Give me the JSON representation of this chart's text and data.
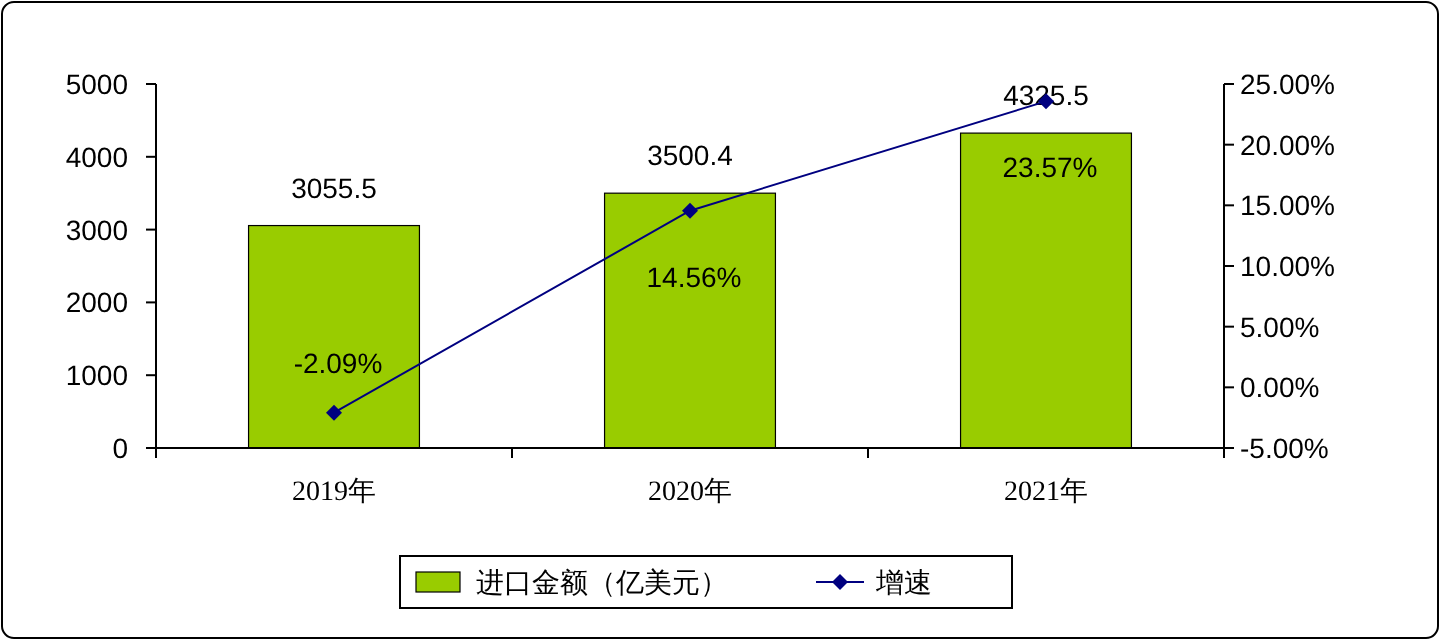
{
  "chart_data": {
    "type": "bar",
    "categories": [
      "2019年",
      "2020年",
      "2021年"
    ],
    "series": [
      {
        "name": "进口金额（亿美元）",
        "color": "#99cc00",
        "values": [
          3055.5,
          3500.4,
          4325.5
        ],
        "value_labels": [
          "3055.5",
          "3500.4",
          "4325.5"
        ]
      },
      {
        "name": "增速",
        "type": "line",
        "axis": "y2",
        "color": "#000080",
        "values": [
          -2.09,
          14.56,
          23.57
        ],
        "value_labels": [
          "-2.09%",
          "14.56%",
          "23.57%"
        ],
        "marker": "diamond"
      }
    ],
    "ylim": [
      0,
      5000
    ],
    "yticks": [
      0,
      1000,
      2000,
      3000,
      4000,
      5000
    ],
    "y2lim": [
      -5,
      25
    ],
    "y2ticks": [
      {
        "value": -5,
        "label": "-5.00%"
      },
      {
        "value": 0,
        "label": "0.00%"
      },
      {
        "value": 5,
        "label": "5.00%"
      },
      {
        "value": 10,
        "label": "10.00%"
      },
      {
        "value": 15,
        "label": "15.00%"
      },
      {
        "value": 20,
        "label": "20.00%"
      },
      {
        "value": 25,
        "label": "25.00%"
      }
    ],
    "legend": "bottom"
  }
}
